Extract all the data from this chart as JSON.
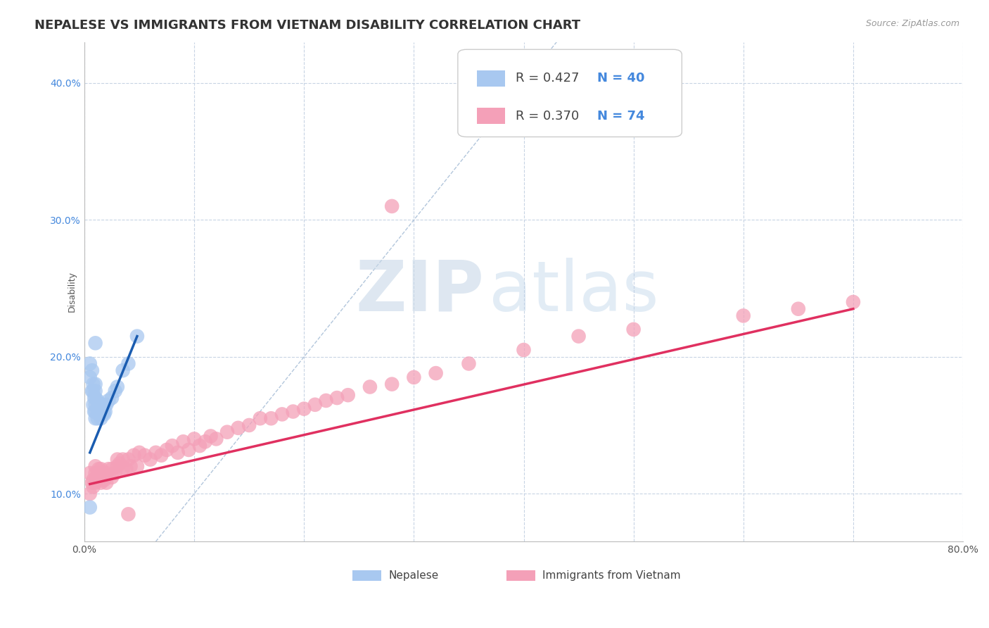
{
  "title": "NEPALESE VS IMMIGRANTS FROM VIETNAM DISABILITY CORRELATION CHART",
  "source_text": "Source: ZipAtlas.com",
  "ylabel": "Disability",
  "xlim": [
    0.0,
    0.8
  ],
  "ylim": [
    0.065,
    0.43
  ],
  "xticks": [
    0.0,
    0.1,
    0.2,
    0.3,
    0.4,
    0.5,
    0.6,
    0.7,
    0.8
  ],
  "yticks": [
    0.1,
    0.2,
    0.3,
    0.4
  ],
  "legend_labels": [
    "Nepalese",
    "Immigrants from Vietnam"
  ],
  "R_nepalese": 0.427,
  "N_nepalese": 40,
  "R_vietnam": 0.37,
  "N_vietnam": 74,
  "nepalese_color": "#a8c8f0",
  "vietnam_color": "#f4a0b8",
  "nepalese_line_color": "#1a5cb0",
  "vietnam_line_color": "#e03060",
  "ref_line_color": "#aac0d8",
  "legend_text_color": "#4488dd",
  "background_color": "#ffffff",
  "grid_color": "#c8d4e4",
  "watermark_color": "#c8d8e8",
  "title_fontsize": 13,
  "axis_label_fontsize": 9,
  "tick_fontsize": 10,
  "nepalese_x": [
    0.005,
    0.005,
    0.007,
    0.007,
    0.008,
    0.008,
    0.008,
    0.009,
    0.009,
    0.01,
    0.01,
    0.01,
    0.01,
    0.01,
    0.01,
    0.012,
    0.012,
    0.012,
    0.013,
    0.013,
    0.014,
    0.015,
    0.015,
    0.015,
    0.016,
    0.016,
    0.017,
    0.018,
    0.018,
    0.019,
    0.02,
    0.022,
    0.025,
    0.028,
    0.03,
    0.035,
    0.04,
    0.048,
    0.005,
    0.01
  ],
  "nepalese_y": [
    0.195,
    0.185,
    0.175,
    0.19,
    0.165,
    0.175,
    0.18,
    0.16,
    0.17,
    0.155,
    0.16,
    0.165,
    0.17,
    0.175,
    0.18,
    0.155,
    0.16,
    0.168,
    0.158,
    0.165,
    0.162,
    0.155,
    0.16,
    0.165,
    0.158,
    0.165,
    0.16,
    0.158,
    0.163,
    0.16,
    0.165,
    0.168,
    0.17,
    0.175,
    0.178,
    0.19,
    0.195,
    0.215,
    0.09,
    0.21
  ],
  "vietnam_x": [
    0.005,
    0.005,
    0.007,
    0.008,
    0.008,
    0.01,
    0.01,
    0.01,
    0.012,
    0.012,
    0.013,
    0.013,
    0.015,
    0.015,
    0.015,
    0.016,
    0.017,
    0.018,
    0.02,
    0.02,
    0.022,
    0.025,
    0.025,
    0.028,
    0.03,
    0.03,
    0.032,
    0.035,
    0.035,
    0.038,
    0.04,
    0.042,
    0.045,
    0.048,
    0.05,
    0.055,
    0.06,
    0.065,
    0.07,
    0.075,
    0.08,
    0.085,
    0.09,
    0.095,
    0.1,
    0.105,
    0.11,
    0.115,
    0.12,
    0.13,
    0.14,
    0.15,
    0.16,
    0.17,
    0.18,
    0.19,
    0.2,
    0.21,
    0.22,
    0.23,
    0.24,
    0.26,
    0.28,
    0.3,
    0.32,
    0.35,
    0.4,
    0.45,
    0.5,
    0.6,
    0.65,
    0.7,
    0.28,
    0.04
  ],
  "vietnam_y": [
    0.115,
    0.1,
    0.108,
    0.11,
    0.105,
    0.108,
    0.115,
    0.12,
    0.11,
    0.115,
    0.112,
    0.118,
    0.108,
    0.112,
    0.118,
    0.112,
    0.115,
    0.11,
    0.108,
    0.115,
    0.118,
    0.112,
    0.118,
    0.115,
    0.12,
    0.125,
    0.122,
    0.118,
    0.125,
    0.118,
    0.125,
    0.12,
    0.128,
    0.12,
    0.13,
    0.128,
    0.125,
    0.13,
    0.128,
    0.132,
    0.135,
    0.13,
    0.138,
    0.132,
    0.14,
    0.135,
    0.138,
    0.142,
    0.14,
    0.145,
    0.148,
    0.15,
    0.155,
    0.155,
    0.158,
    0.16,
    0.162,
    0.165,
    0.168,
    0.17,
    0.172,
    0.178,
    0.18,
    0.185,
    0.188,
    0.195,
    0.205,
    0.215,
    0.22,
    0.23,
    0.235,
    0.24,
    0.31,
    0.085
  ],
  "nepalese_line_x": [
    0.005,
    0.048
  ],
  "nepalese_line_y": [
    0.13,
    0.215
  ],
  "vietnam_line_x": [
    0.005,
    0.7
  ],
  "vietnam_line_y": [
    0.107,
    0.235
  ],
  "ref_line_x": [
    0.065,
    0.43
  ],
  "ref_line_y": [
    0.065,
    0.43
  ]
}
